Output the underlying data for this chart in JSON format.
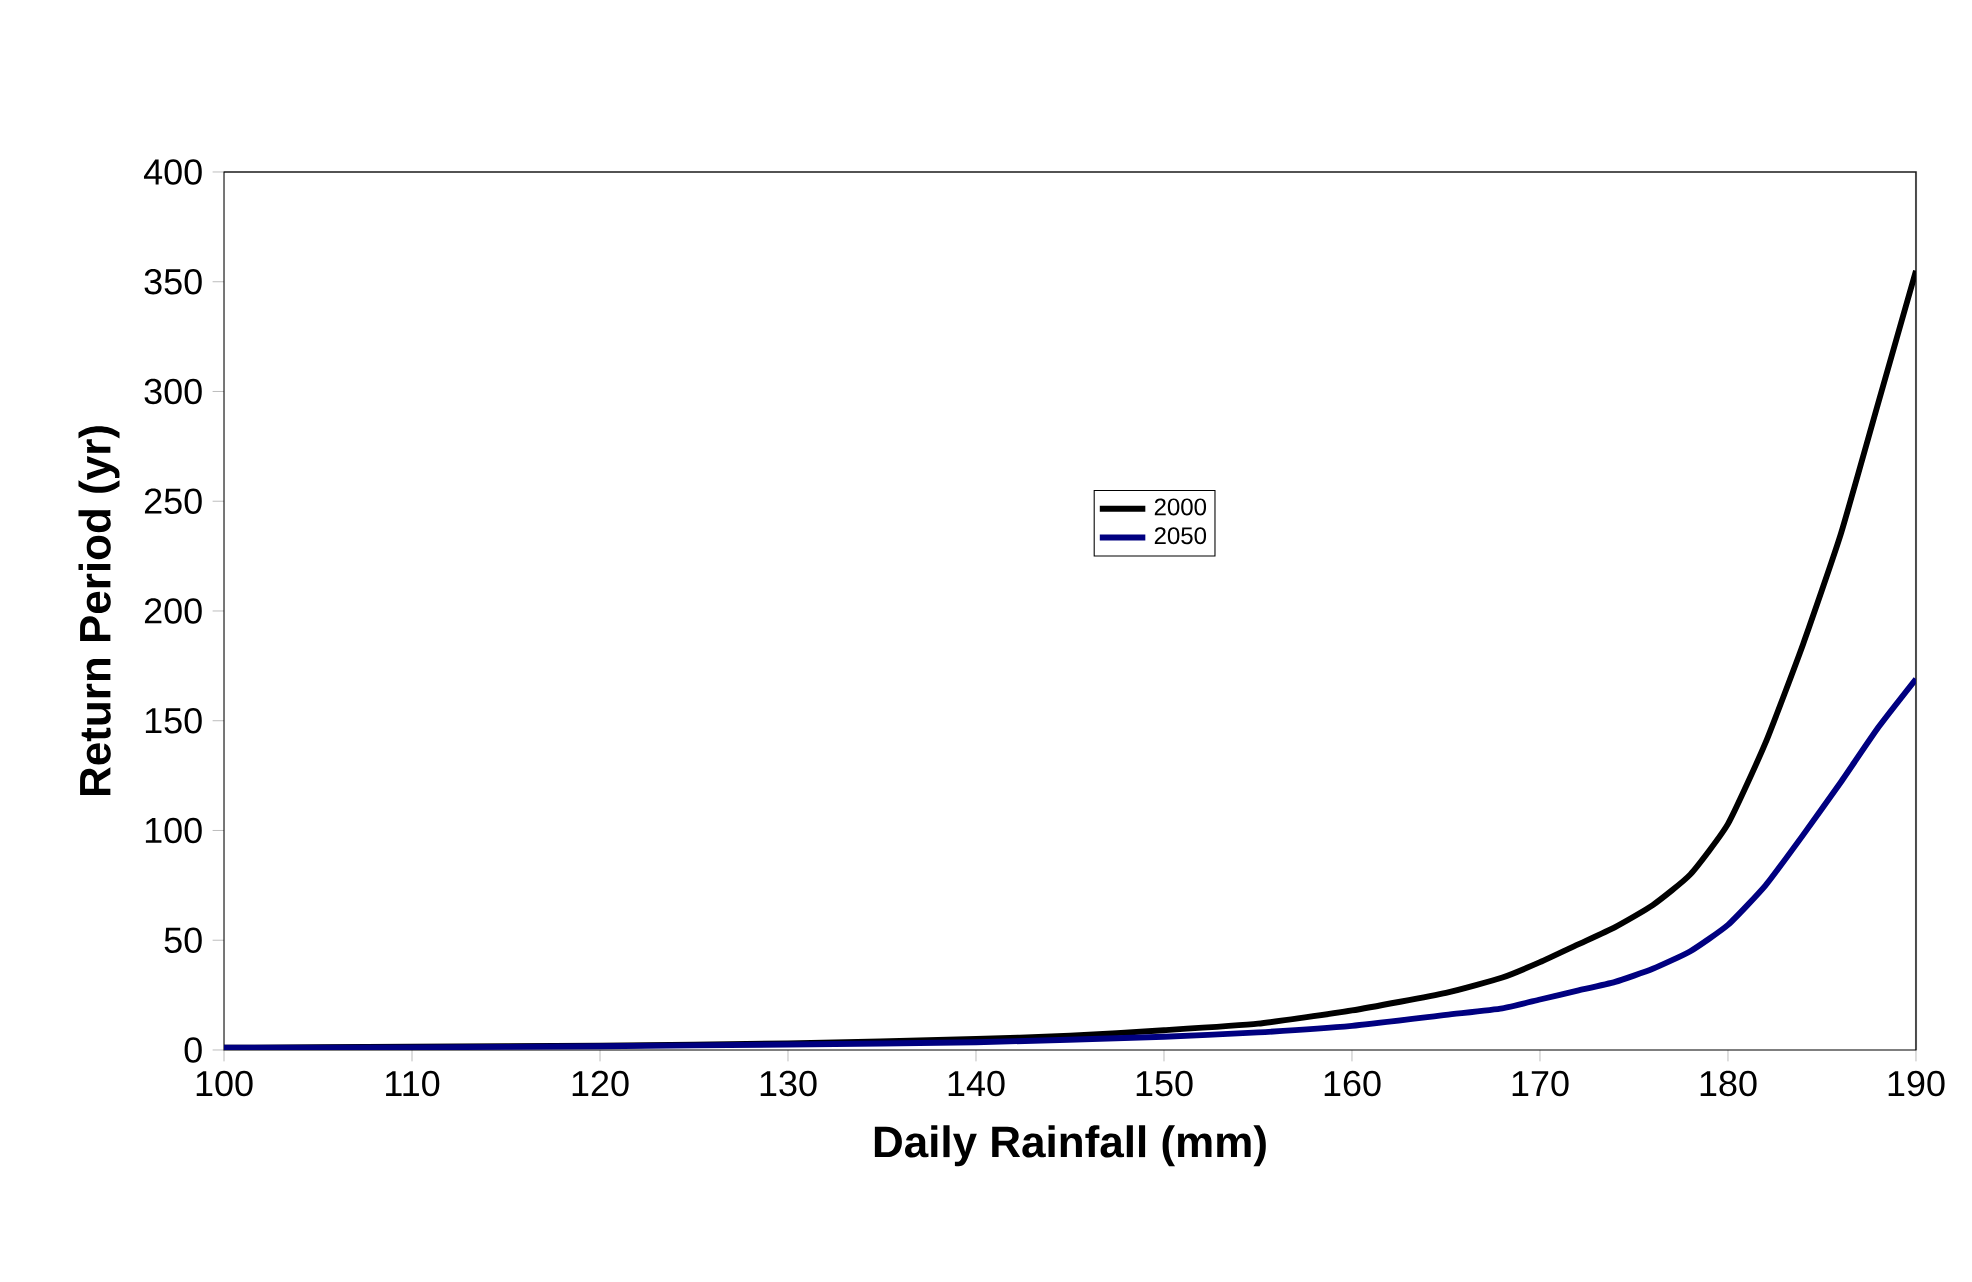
{
  "chart_data": {
    "type": "line",
    "xlabel": "Daily Rainfall (mm)",
    "ylabel": "Return Period (yr)",
    "xlim": [
      100,
      190
    ],
    "xticks": [
      100,
      110,
      120,
      130,
      140,
      150,
      160,
      170,
      180,
      190
    ],
    "ylim": [
      0,
      400
    ],
    "yticks": [
      0,
      50,
      100,
      150,
      200,
      250,
      300,
      350,
      400
    ],
    "grid": false,
    "legend": "center",
    "marker": "none",
    "line_style": "solid",
    "series": [
      {
        "name": "2000",
        "color": "#000000",
        "x": [
          100,
          110,
          120,
          130,
          140,
          145,
          150,
          155,
          160,
          165,
          168,
          170,
          172,
          174,
          176,
          178,
          180,
          182,
          184,
          186,
          188,
          190
        ],
        "values": [
          1,
          1.5,
          2,
          3,
          5,
          6.5,
          9,
          12,
          18,
          26,
          33,
          40,
          48,
          56,
          66,
          80,
          103,
          140,
          185,
          235,
          295,
          355
        ]
      },
      {
        "name": "2050",
        "color": "#000080",
        "x": [
          100,
          110,
          120,
          130,
          140,
          150,
          155,
          160,
          165,
          168,
          170,
          172,
          174,
          176,
          178,
          180,
          182,
          184,
          186,
          188,
          190
        ],
        "values": [
          1,
          1.2,
          1.7,
          2.5,
          3.5,
          6,
          8,
          11,
          16,
          19,
          23,
          27,
          31,
          37,
          45,
          57,
          75,
          98,
          122,
          147,
          169
        ]
      }
    ]
  }
}
